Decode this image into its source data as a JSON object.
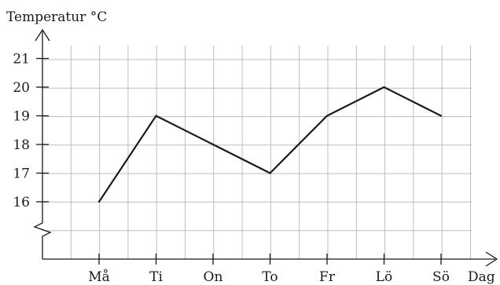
{
  "chart_data": {
    "type": "line",
    "categories": [
      "Må",
      "Ti",
      "On",
      "To",
      "Fr",
      "Lö",
      "Sö"
    ],
    "values": [
      16,
      19,
      18,
      17,
      19,
      20,
      19
    ],
    "ylabel": "Temperatur °C",
    "xlabel": "Dag",
    "y_ticks": [
      16,
      17,
      18,
      19,
      20,
      21
    ],
    "ylim": [
      15,
      21.5
    ],
    "y_axis_break": true,
    "grid": true,
    "line_color": "#1a1a1a",
    "grid_color": "#bdbdbd"
  }
}
